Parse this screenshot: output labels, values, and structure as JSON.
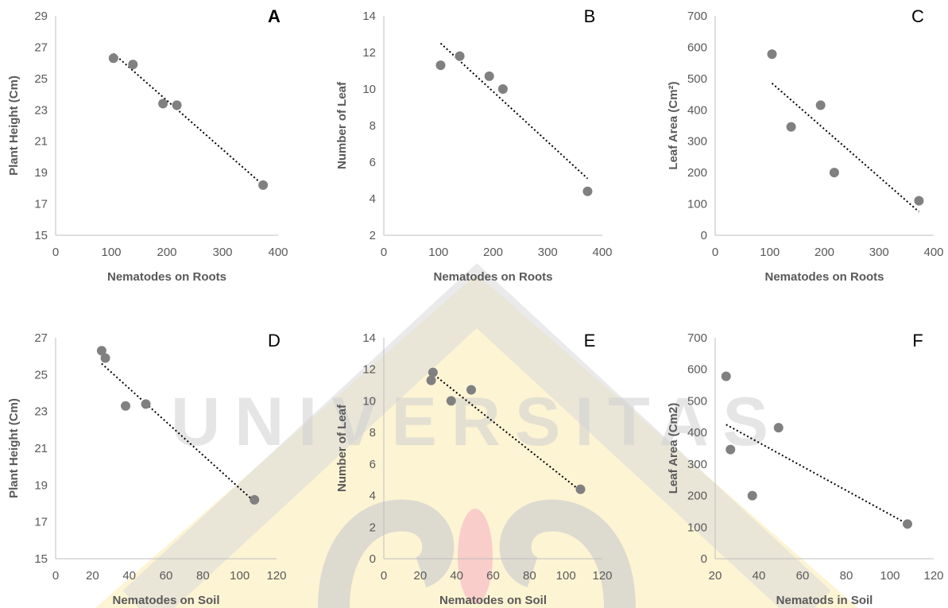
{
  "figure": {
    "watermark_text": "UNIVERSITAS"
  },
  "chart_data": [
    {
      "panel": "A",
      "type": "scatter",
      "xlabel": "Nematodes on Roots",
      "ylabel": "Plant Height (Cm)",
      "xlim": [
        0,
        400
      ],
      "ylim": [
        15,
        29
      ],
      "xticks": [
        0,
        100,
        200,
        300,
        400
      ],
      "yticks": [
        15,
        17,
        19,
        21,
        23,
        25,
        27,
        29
      ],
      "points": [
        [
          104,
          26.3
        ],
        [
          139,
          25.9
        ],
        [
          193,
          23.4
        ],
        [
          218,
          23.3
        ],
        [
          373,
          18.2
        ]
      ],
      "trendline": [
        [
          104,
          26.6
        ],
        [
          373,
          18.2
        ]
      ],
      "grid": false,
      "marker_color": "#808080"
    },
    {
      "panel": "B",
      "type": "scatter",
      "xlabel": "Nematodes on Roots",
      "ylabel": "Number of Leaf",
      "xlim": [
        0,
        400
      ],
      "ylim": [
        2,
        14
      ],
      "xticks": [
        0,
        100,
        200,
        300,
        400
      ],
      "yticks": [
        2,
        4,
        6,
        8,
        10,
        12,
        14
      ],
      "points": [
        [
          104,
          11.3
        ],
        [
          139,
          11.8
        ],
        [
          193,
          10.7
        ],
        [
          218,
          10.0
        ],
        [
          373,
          4.4
        ]
      ],
      "trendline": [
        [
          104,
          12.5
        ],
        [
          373,
          5.1
        ]
      ],
      "grid": false,
      "marker_color": "#808080"
    },
    {
      "panel": "C",
      "type": "scatter",
      "xlabel": "Nematodes on Roots",
      "ylabel": "Leaf Area (Cm²)",
      "xlim": [
        0,
        400
      ],
      "ylim": [
        0,
        700
      ],
      "xticks": [
        0,
        100,
        200,
        300,
        400
      ],
      "yticks": [
        0,
        100,
        200,
        300,
        400,
        500,
        600,
        700
      ],
      "points": [
        [
          104,
          578
        ],
        [
          139,
          346
        ],
        [
          193,
          415
        ],
        [
          218,
          200
        ],
        [
          373,
          110
        ]
      ],
      "trendline": [
        [
          104,
          485
        ],
        [
          373,
          75
        ]
      ],
      "grid": false,
      "marker_color": "#808080"
    },
    {
      "panel": "D",
      "type": "scatter",
      "xlabel": "Nematodes on Soil",
      "ylabel": "Plant Height (Cm)",
      "xlim": [
        0,
        120
      ],
      "ylim": [
        15,
        27
      ],
      "xticks": [
        0,
        20,
        40,
        60,
        80,
        100,
        120
      ],
      "yticks": [
        15,
        17,
        19,
        21,
        23,
        25,
        27
      ],
      "points": [
        [
          25,
          26.3
        ],
        [
          27,
          25.9
        ],
        [
          38,
          23.3
        ],
        [
          49,
          23.4
        ],
        [
          108,
          18.2
        ]
      ],
      "trendline": [
        [
          25,
          25.6
        ],
        [
          108,
          18.1
        ]
      ],
      "grid": false,
      "marker_color": "#808080"
    },
    {
      "panel": "E",
      "type": "scatter",
      "xlabel": "Nematodes on Soil",
      "ylabel": "Number of Leaf",
      "xlim": [
        0,
        120
      ],
      "ylim": [
        0,
        14
      ],
      "xticks": [
        0,
        20,
        40,
        60,
        80,
        100,
        120
      ],
      "yticks": [
        0,
        2,
        4,
        6,
        8,
        10,
        12,
        14
      ],
      "points": [
        [
          26,
          11.3
        ],
        [
          27,
          11.8
        ],
        [
          37,
          10.0
        ],
        [
          48,
          10.7
        ],
        [
          108,
          4.4
        ]
      ],
      "trendline": [
        [
          26,
          11.8
        ],
        [
          108,
          4.3
        ]
      ],
      "grid": false,
      "marker_color": "#808080"
    },
    {
      "panel": "F",
      "type": "scatter",
      "xlabel": "Nematods in Soil",
      "ylabel": "Leaf Area (Cm2)",
      "xlim": [
        20,
        120
      ],
      "ylim": [
        0,
        700
      ],
      "xticks": [
        20,
        40,
        60,
        80,
        100,
        120
      ],
      "yticks": [
        0,
        100,
        200,
        300,
        400,
        500,
        600,
        700
      ],
      "points": [
        [
          25,
          578
        ],
        [
          27,
          346
        ],
        [
          37,
          200
        ],
        [
          49,
          415
        ],
        [
          108,
          110
        ]
      ],
      "trendline": [
        [
          25,
          425
        ],
        [
          108,
          110
        ]
      ],
      "grid": false,
      "marker_color": "#808080"
    }
  ]
}
